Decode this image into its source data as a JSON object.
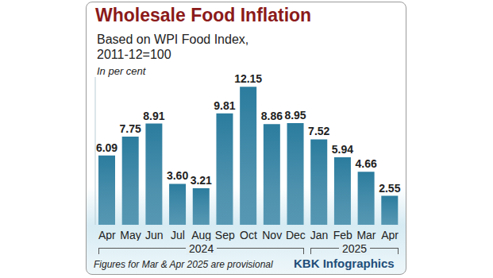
{
  "chart_data": {
    "type": "bar",
    "title": "Wholesale Food Inflation",
    "subtitle": "Based on WPI Food Index, 2011-12=100",
    "ylabel": "In per cent",
    "categories": [
      "Apr",
      "May",
      "Jun",
      "Jul",
      "Aug",
      "Sep",
      "Oct",
      "Nov",
      "Dec",
      "Jan",
      "Feb",
      "Mar",
      "Apr"
    ],
    "values": [
      6.09,
      7.75,
      8.91,
      3.6,
      3.21,
      9.81,
      12.15,
      8.86,
      8.95,
      7.52,
      5.94,
      4.66,
      2.55
    ],
    "value_labels": [
      "6.09",
      "7.75",
      "8.91",
      "3.60",
      "3.21",
      "9.81",
      "12.15",
      "8.86",
      "8.95",
      "7.52",
      "5.94",
      "4.66",
      "2.55"
    ],
    "year_groups": [
      {
        "label": "2024",
        "start": 0,
        "end": 8
      },
      {
        "label": "2025",
        "start": 9,
        "end": 12
      }
    ],
    "color": "#2b7c9e",
    "ylim": [
      0,
      13
    ],
    "data_labels": true,
    "tick_labels": "x",
    "grid": false,
    "note": "Figures for Mar & Apr 2025 are provisional",
    "source": "KBK Infographics"
  }
}
